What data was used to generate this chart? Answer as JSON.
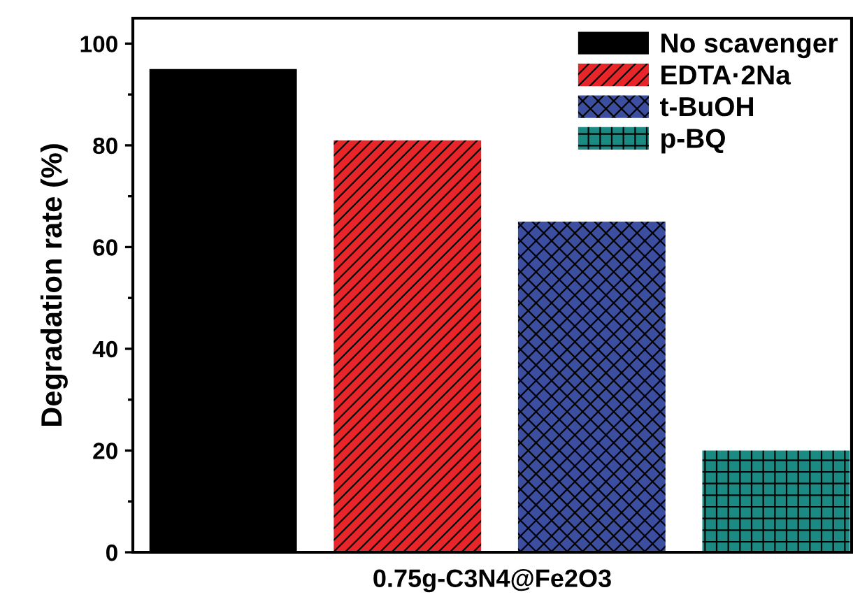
{
  "chart_data": {
    "type": "bar",
    "xlabel": "0.75g-C3N4@Fe2O3",
    "ylabel": "Degradation rate (%)",
    "categories": [
      null
    ],
    "series": [
      {
        "name": "No scavenger",
        "color": "#000000",
        "values": [
          95
        ]
      },
      {
        "name": "EDTA·2Na",
        "color": "#e8262a",
        "values": [
          81
        ]
      },
      {
        "name": "t-BuOH",
        "color": "#3b4ea0",
        "values": [
          65
        ]
      },
      {
        "name": "p-BQ",
        "color": "#1b8a83",
        "values": [
          20
        ]
      }
    ],
    "ylim": [
      0,
      105
    ],
    "yticks": [
      0,
      {
        "value": 10,
        "label": null
      },
      20,
      {
        "value": 30,
        "label": null
      },
      40,
      {
        "value": 50,
        "label": null
      },
      60,
      {
        "value": 70,
        "label": null
      },
      80,
      {
        "value": 90,
        "label": null
      },
      100
    ],
    "grid": false,
    "legend": "top right"
  }
}
